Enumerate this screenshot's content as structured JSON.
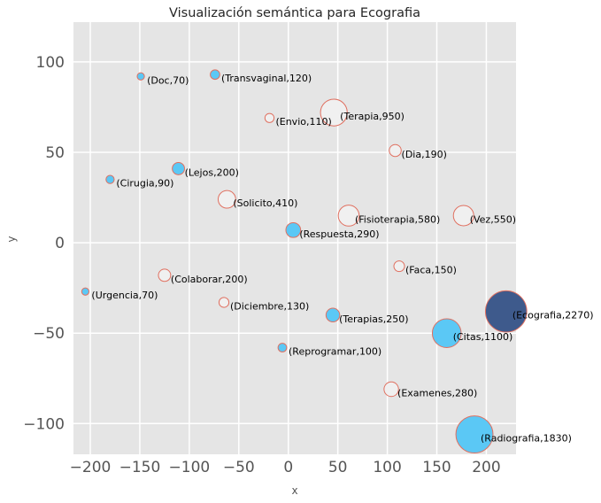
{
  "chart_data": {
    "type": "scatter",
    "title": "Visualización semántica para Ecografia",
    "xlabel": "x",
    "ylabel": "y",
    "xlim": [
      -217,
      230
    ],
    "ylim": [
      -117,
      122
    ],
    "xticks": [
      -200,
      -150,
      -100,
      -50,
      0,
      50,
      100,
      150,
      200
    ],
    "yticks": [
      -100,
      -50,
      0,
      50,
      100
    ],
    "grid": true,
    "colors": {
      "background": "#e5e5e5",
      "grid": "#ffffff",
      "edge": "#e07060",
      "filled": "#5bc8f5",
      "hollow": "#f0f0f0",
      "highlight": "#3e5a8c"
    },
    "points": [
      {
        "label": "(Doc,70)",
        "x": -149,
        "y": 92,
        "size": 70,
        "style": "filled"
      },
      {
        "label": "(Transvaginal,120)",
        "x": -74,
        "y": 93,
        "size": 120,
        "style": "filled"
      },
      {
        "label": "(Terapia,950)",
        "x": 46,
        "y": 72,
        "size": 950,
        "style": "hollow"
      },
      {
        "label": "(Envio,110)",
        "x": -19,
        "y": 69,
        "size": 110,
        "style": "hollow"
      },
      {
        "label": "(Dia,190)",
        "x": 108,
        "y": 51,
        "size": 190,
        "style": "hollow"
      },
      {
        "label": "(Lejos,200)",
        "x": -111,
        "y": 41,
        "size": 200,
        "style": "filled"
      },
      {
        "label": "(Cirugia,90)",
        "x": -180,
        "y": 35,
        "size": 90,
        "style": "filled"
      },
      {
        "label": "(Solicito,410)",
        "x": -62,
        "y": 24,
        "size": 410,
        "style": "hollow"
      },
      {
        "label": "(Fisioterapia,580)",
        "x": 61,
        "y": 15,
        "size": 580,
        "style": "hollow"
      },
      {
        "label": "(Vez,550)",
        "x": 177,
        "y": 15,
        "size": 550,
        "style": "hollow"
      },
      {
        "label": "(Respuesta,290)",
        "x": 5,
        "y": 7,
        "size": 290,
        "style": "filled"
      },
      {
        "label": "(Faca,150)",
        "x": 112,
        "y": -13,
        "size": 150,
        "style": "hollow"
      },
      {
        "label": "(Colaborar,200)",
        "x": -125,
        "y": -18,
        "size": 200,
        "style": "hollow"
      },
      {
        "label": "(Urgencia,70)",
        "x": -205,
        "y": -27,
        "size": 70,
        "style": "filled"
      },
      {
        "label": "(Diciembre,130)",
        "x": -65,
        "y": -33,
        "size": 130,
        "style": "hollow"
      },
      {
        "label": "(Ecografia,2270)",
        "x": 220,
        "y": -38,
        "size": 2270,
        "style": "highlight"
      },
      {
        "label": "(Terapias,250)",
        "x": 45,
        "y": -40,
        "size": 250,
        "style": "filled"
      },
      {
        "label": "(Citas,1100)",
        "x": 160,
        "y": -50,
        "size": 1100,
        "style": "filled"
      },
      {
        "label": "(Reprogramar,100)",
        "x": -6,
        "y": -58,
        "size": 100,
        "style": "filled"
      },
      {
        "label": "(Examenes,280)",
        "x": 104,
        "y": -81,
        "size": 280,
        "style": "hollow"
      },
      {
        "label": "(Radiografia,1830)",
        "x": 188,
        "y": -106,
        "size": 1830,
        "style": "filled"
      }
    ]
  }
}
